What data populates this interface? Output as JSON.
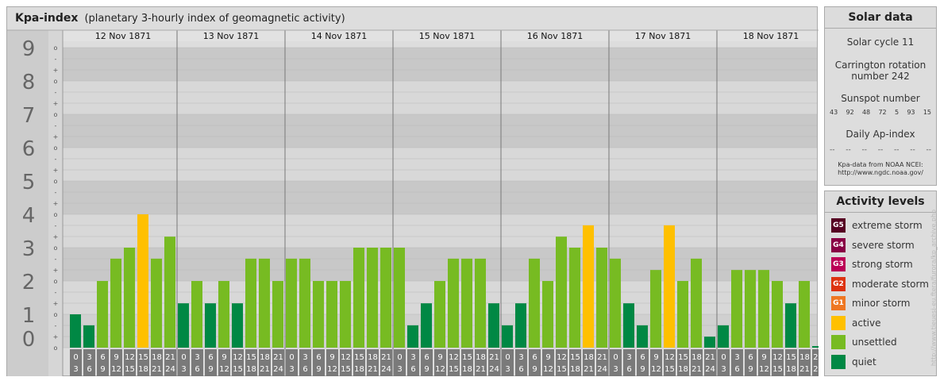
{
  "header": {
    "title": "Kpa-index",
    "subtitle": "(planetary 3-hourly index of geomagnetic activity)"
  },
  "chart_data": {
    "type": "bar",
    "title": "Kpa-index",
    "subtitle": "(planetary 3-hourly index of geomagnetic activity)",
    "ylim": [
      0,
      9
    ],
    "y_ticks": [
      "0",
      "1",
      "2",
      "3",
      "4",
      "5",
      "6",
      "7",
      "8",
      "9"
    ],
    "sub_ticks": [
      "-",
      "o",
      "+"
    ],
    "days": [
      "12 Nov 1871",
      "13 Nov 1871",
      "14 Nov 1871",
      "15 Nov 1871",
      "16 Nov 1871",
      "17 Nov 1871",
      "18 Nov 1871"
    ],
    "hour_labels": [
      [
        "0",
        "3"
      ],
      [
        "3",
        "6"
      ],
      [
        "6",
        "9"
      ],
      [
        "9",
        "12"
      ],
      [
        "12",
        "15"
      ],
      [
        "15",
        "18"
      ],
      [
        "18",
        "21"
      ],
      [
        "21",
        "24"
      ]
    ],
    "values": [
      [
        1.0,
        0.67,
        2.0,
        2.67,
        3.0,
        4.0,
        2.67,
        3.33
      ],
      [
        1.33,
        2.0,
        1.33,
        2.0,
        1.33,
        2.67,
        2.67,
        2.0
      ],
      [
        2.67,
        2.67,
        2.0,
        2.0,
        2.0,
        3.0,
        3.0,
        3.0
      ],
      [
        3.0,
        0.67,
        1.33,
        2.0,
        2.67,
        2.67,
        2.67,
        1.33
      ],
      [
        0.67,
        1.33,
        2.67,
        2.0,
        3.33,
        3.0,
        3.67,
        3.0
      ],
      [
        2.67,
        1.33,
        0.67,
        2.33,
        3.67,
        2.0,
        2.67,
        0.33
      ],
      [
        0.67,
        2.33,
        2.33,
        2.33,
        2.0,
        1.33,
        2.0,
        0.0
      ]
    ],
    "colors": {
      "quiet": "#008844",
      "unsettled": "#77bb22",
      "active": "#ffc000"
    }
  },
  "solar": {
    "title": "Solar data",
    "cycle": "Solar cycle 11",
    "carrington_1": "Carrington rotation",
    "carrington_2": "number 242",
    "sunspot_label": "Sunspot number",
    "sunspots": [
      "43",
      "92",
      "48",
      "72",
      "5",
      "93",
      "15"
    ],
    "ap_label": "Daily Ap-index",
    "ap": [
      "--",
      "--",
      "--",
      "--",
      "--",
      "--",
      "--"
    ],
    "source_1": "Kpa-data from NOAA NCEI:",
    "source_2": "http://www.ngdc.noaa.gov/"
  },
  "levels": {
    "title": "Activity levels",
    "items": [
      {
        "badge": "G5",
        "label": "extreme storm",
        "color": "#550022"
      },
      {
        "badge": "G4",
        "label": "severe storm",
        "color": "#880044"
      },
      {
        "badge": "G3",
        "label": "strong storm",
        "color": "#bb0055"
      },
      {
        "badge": "G2",
        "label": "moderate storm",
        "color": "#dd3311"
      },
      {
        "badge": "G1",
        "label": "minor storm",
        "color": "#ee7722"
      },
      {
        "badge": "",
        "label": "active",
        "color": "#ffc000"
      },
      {
        "badge": "",
        "label": "unsettled",
        "color": "#77bb22"
      },
      {
        "badge": "",
        "label": "quiet",
        "color": "#008844"
      }
    ]
  },
  "watermark": "http://www.tieuesj-eu.ftera/furora/kp_archive.php"
}
